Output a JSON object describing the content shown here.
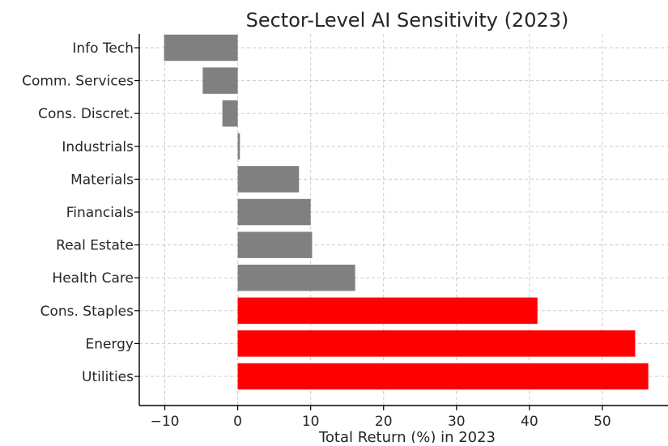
{
  "chart_data": {
    "type": "bar",
    "orientation": "horizontal",
    "title": "Sector-Level AI Sensitivity (2023)",
    "xlabel": "Total Return (%) in 2023",
    "ylabel": "",
    "categories": [
      "Utilities",
      "Energy",
      "Cons. Staples",
      "Health Care",
      "Real Estate",
      "Financials",
      "Materials",
      "Industrials",
      "Cons. Discret.",
      "Comm. Services",
      "Info Tech"
    ],
    "values": [
      56.3,
      54.5,
      41.1,
      16.1,
      10.2,
      10.0,
      8.4,
      0.3,
      -2.1,
      -4.8,
      -10.1
    ],
    "colors": [
      "#ff0000",
      "#ff0000",
      "#ff0000",
      "#808080",
      "#808080",
      "#808080",
      "#808080",
      "#808080",
      "#808080",
      "#808080",
      "#808080"
    ],
    "xlim": [
      -13.5,
      59
    ],
    "xticks": [
      -10,
      0,
      10,
      20,
      30,
      40,
      50
    ],
    "xtick_labels": [
      "−10",
      "0",
      "10",
      "20",
      "30",
      "40",
      "50"
    ],
    "grid": true
  }
}
